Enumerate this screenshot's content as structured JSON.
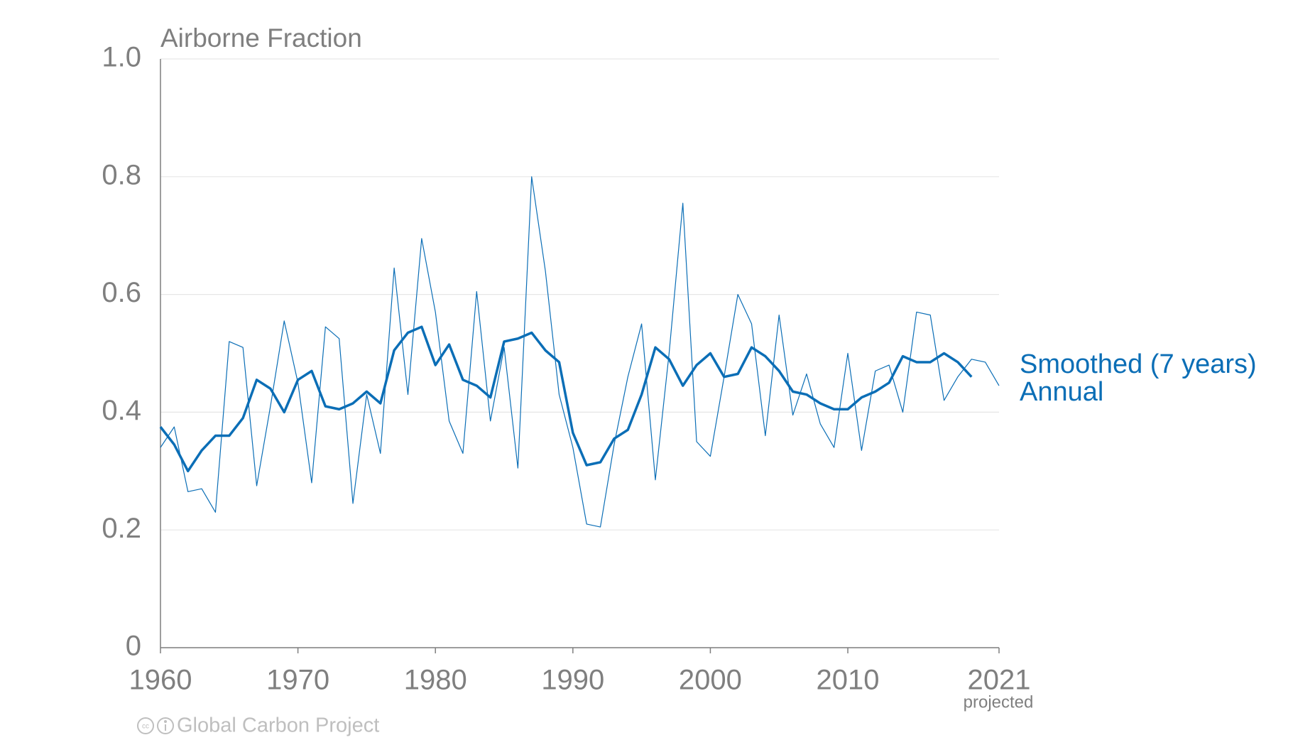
{
  "chart_data": {
    "type": "line",
    "title": "Airborne Fraction",
    "x": [
      1960,
      1961,
      1962,
      1963,
      1964,
      1965,
      1966,
      1967,
      1968,
      1969,
      1970,
      1971,
      1972,
      1973,
      1974,
      1975,
      1976,
      1977,
      1978,
      1979,
      1980,
      1981,
      1982,
      1983,
      1984,
      1985,
      1986,
      1987,
      1988,
      1989,
      1990,
      1991,
      1992,
      1993,
      1994,
      1995,
      1996,
      1997,
      1998,
      1999,
      2000,
      2001,
      2002,
      2003,
      2004,
      2005,
      2006,
      2007,
      2008,
      2009,
      2010,
      2011,
      2012,
      2013,
      2014,
      2015,
      2016,
      2017,
      2018,
      2019,
      2020,
      2021
    ],
    "series": [
      {
        "name": "Smoothed (7 years)",
        "color": "#0b6eb6",
        "width": 3.5,
        "values": [
          0.375,
          0.345,
          0.3,
          0.335,
          0.36,
          0.36,
          0.39,
          0.455,
          0.44,
          0.4,
          0.455,
          0.47,
          0.41,
          0.405,
          0.415,
          0.435,
          0.415,
          0.505,
          0.535,
          0.545,
          0.48,
          0.515,
          0.455,
          0.445,
          0.425,
          0.52,
          0.525,
          0.535,
          0.505,
          0.485,
          0.365,
          0.31,
          0.315,
          0.355,
          0.37,
          0.43,
          0.51,
          0.49,
          0.445,
          0.48,
          0.5,
          0.46,
          0.465,
          0.51,
          0.495,
          0.47,
          0.435,
          0.43,
          0.415,
          0.405,
          0.405,
          0.425,
          0.435,
          0.45,
          0.495,
          0.485,
          0.485,
          0.5,
          0.485,
          0.46,
          null,
          null
        ]
      },
      {
        "name": "Annual",
        "color": "#0b6eb6",
        "width": 1.2,
        "values": [
          0.34,
          0.375,
          0.265,
          0.27,
          0.23,
          0.52,
          0.51,
          0.275,
          0.41,
          0.555,
          0.45,
          0.28,
          0.545,
          0.525,
          0.245,
          0.43,
          0.33,
          0.645,
          0.43,
          0.695,
          0.57,
          0.385,
          0.33,
          0.605,
          0.385,
          0.51,
          0.305,
          0.8,
          0.64,
          0.43,
          0.34,
          0.21,
          0.205,
          0.345,
          0.46,
          0.55,
          0.285,
          0.5,
          0.755,
          0.35,
          0.325,
          0.46,
          0.6,
          0.55,
          0.36,
          0.565,
          0.395,
          0.465,
          0.38,
          0.34,
          0.5,
          0.335,
          0.47,
          0.48,
          0.4,
          0.57,
          0.565,
          0.42,
          0.46,
          0.49,
          0.485,
          0.445
        ]
      }
    ],
    "xlim": [
      1960,
      2021
    ],
    "xticks": [
      1960,
      1970,
      1980,
      1990,
      2000,
      2010,
      2021
    ],
    "ylim": [
      0,
      1
    ],
    "yticks": [
      0,
      0.2,
      0.4,
      0.6,
      0.8,
      {
        "value": 1,
        "label": "1.0"
      }
    ],
    "grid": true,
    "annotations": [
      "projected"
    ],
    "source": "Global Carbon Project"
  }
}
